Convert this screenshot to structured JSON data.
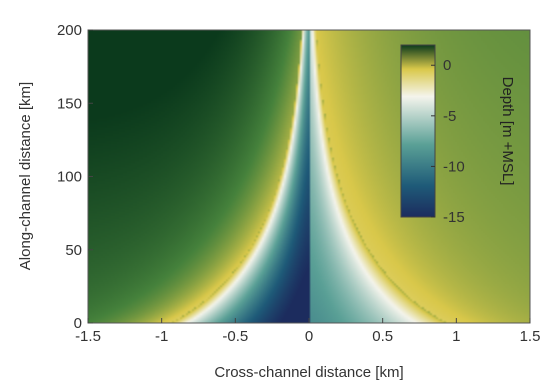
{
  "chart_data": {
    "type": "heatmap",
    "title": "",
    "xlabel": "Cross-channel distance [km]",
    "ylabel": "Along-channel distance [km]",
    "xlim": [
      -1.5,
      1.5
    ],
    "ylim": [
      0,
      200
    ],
    "x_ticks": [
      "-1.5",
      "-1",
      "-0.5",
      "0",
      "0.5",
      "1",
      "1.5"
    ],
    "y_ticks": [
      "0",
      "50",
      "100",
      "150",
      "200"
    ],
    "colorbar": {
      "label": "Depth [m +MSL]",
      "range": [
        -15,
        2
      ],
      "ticks": [
        "0",
        "-5",
        "-10",
        "-15"
      ],
      "colors": [
        "#1c2c5e",
        "#1e5a78",
        "#5aa096",
        "#f4f4ec",
        "#d9c84a",
        "#0b3a1c"
      ]
    },
    "field": {
      "description": "Channel depth funnel: deepest (-15 m) at x=0 near y=0, shoals toward banks and upstream; banks rise to ~+2 m",
      "channel_halfwidth_at_y0_km": 0.95,
      "channel_halfwidth_at_y200_km": 0.05,
      "max_depth_m": -15,
      "bank_height_m": 2
    }
  }
}
